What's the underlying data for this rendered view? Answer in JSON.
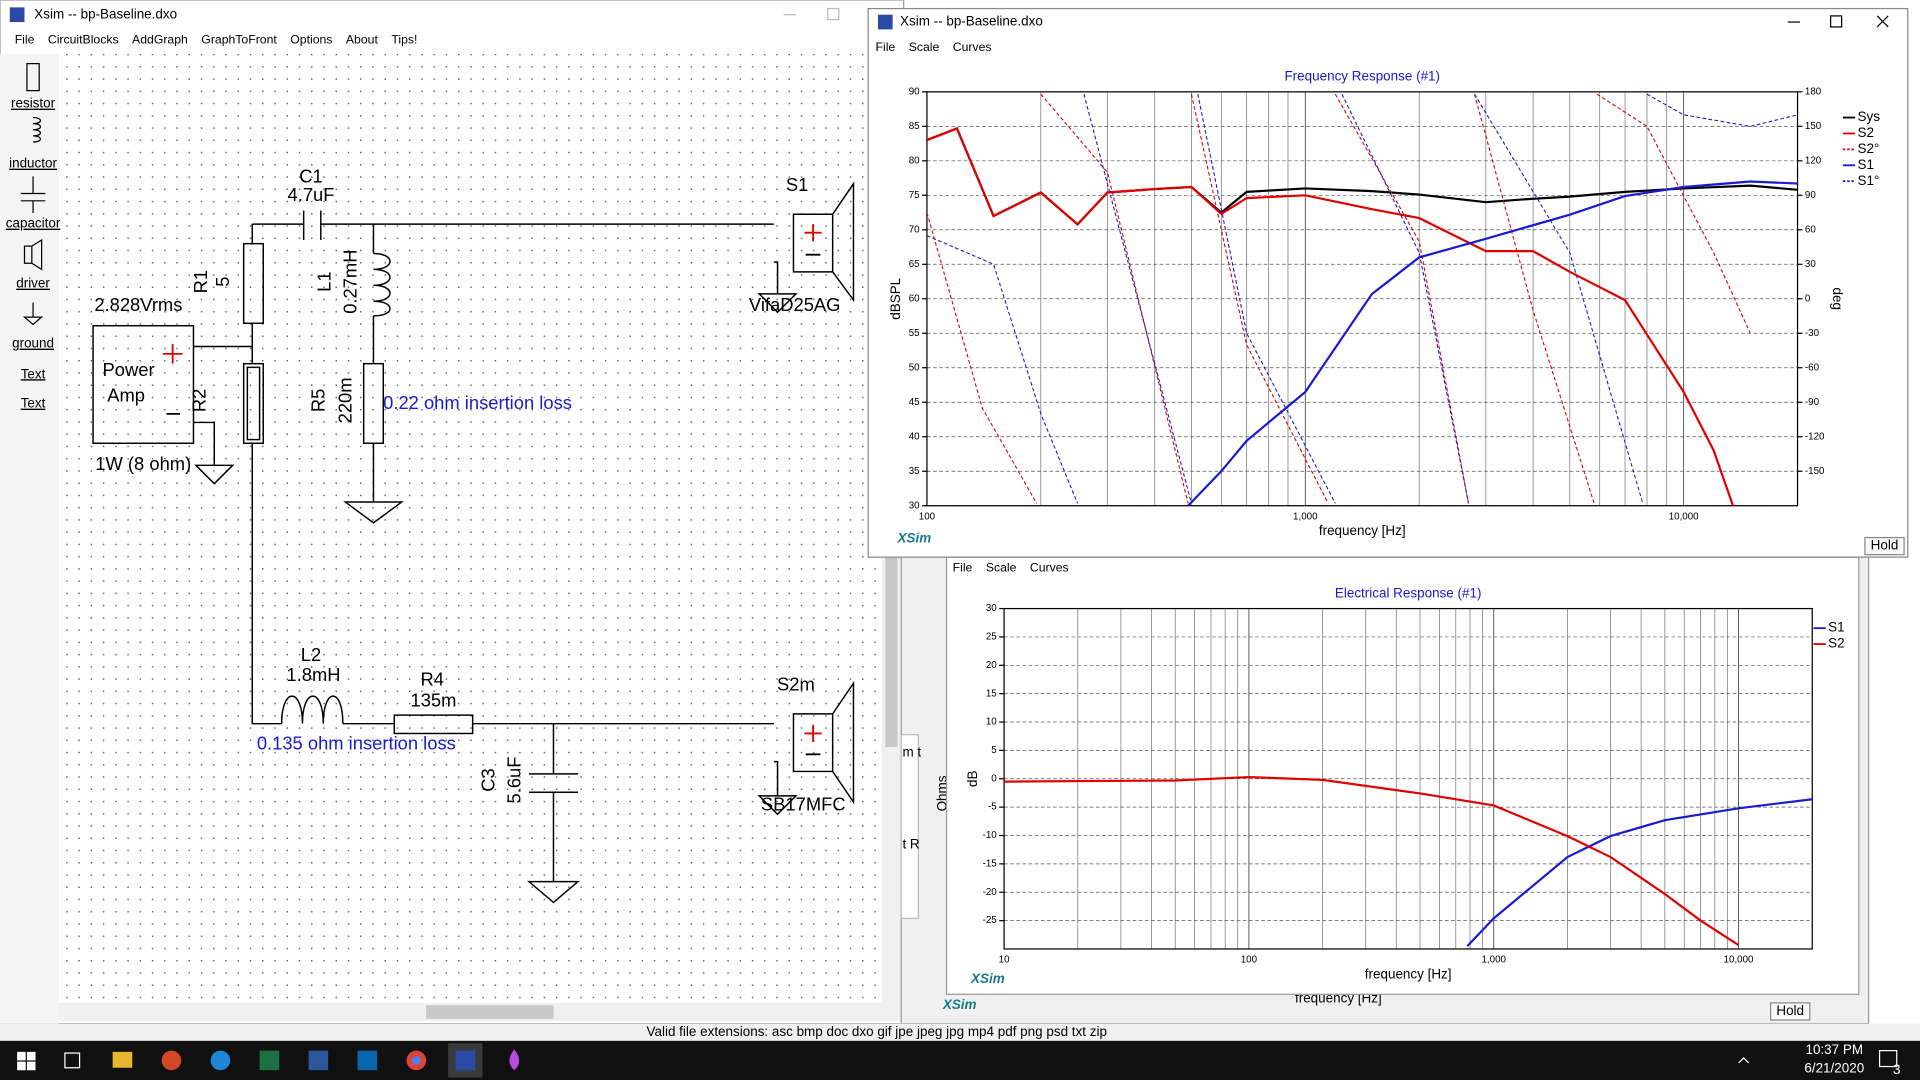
{
  "main_window": {
    "title": "Xsim -- bp-Baseline.dxo",
    "menu": [
      "File",
      "CircuitBlocks",
      "AddGraph",
      "GraphToFront",
      "Options",
      "About",
      "Tips!"
    ],
    "toolbox": [
      "resistor",
      "inductor",
      "capacitor",
      "driver",
      "ground",
      "Text",
      "Text"
    ]
  },
  "schematic": {
    "labels": [
      "C1",
      "4.7uF",
      "R1",
      "5",
      "L1",
      "0.27mH",
      "2.828Vrms",
      "Power",
      "Amp",
      "R2",
      "R5",
      "220m",
      "0.22 ohm insertion loss",
      "S1",
      "VifaD25AG",
      "1W (8 ohm)",
      "L2",
      "1.8mH",
      "R4",
      "135m",
      "0.135 ohm insertion loss",
      "S2m",
      "C3",
      "5.6uF",
      "SB17MFC"
    ]
  },
  "graph_windows": [
    {
      "title": "Xsim -- bp-Baseline.dxo",
      "menu": [
        "File",
        "Scale",
        "Curves"
      ],
      "brand": "XSim",
      "button": "Hold"
    },
    {
      "menu": [
        "File",
        "Scale",
        "Curves"
      ],
      "brand": "XSim"
    },
    {
      "brand": "XSim",
      "button": "Hold",
      "x_label": "frequency [Hz]",
      "y_label": "Ohms",
      "fragments": [
        "m t",
        "t R"
      ]
    }
  ],
  "chart_data": [
    {
      "type": "line",
      "title": "Frequency Response (#1)",
      "x_label": "frequency [Hz]",
      "y_label": "dBSPL",
      "y2_label": "deg",
      "log_x": true,
      "grid": true,
      "legend": "right",
      "xlim": [
        100,
        20000
      ],
      "xticks": [
        100,
        {
          "value": 1000,
          "label": "1,000"
        },
        {
          "value": 10000,
          "label": "10,000"
        }
      ],
      "xticks_minor": [
        200,
        300,
        400,
        500,
        600,
        700,
        800,
        900,
        2000,
        3000,
        4000,
        5000,
        6000,
        7000,
        8000,
        9000
      ],
      "ylim": [
        30,
        90
      ],
      "yticks": [
        30,
        35,
        40,
        45,
        50,
        55,
        60,
        65,
        70,
        75,
        80,
        85,
        90
      ],
      "y2lim": [
        -180,
        180
      ],
      "y2ticks": [
        -150,
        -120,
        -90,
        -60,
        -30,
        0,
        30,
        60,
        90,
        120,
        150,
        180
      ],
      "series": [
        {
          "name": "Sys",
          "color": "#000000",
          "x": [
            100,
            120,
            150,
            200,
            250,
            300,
            400,
            500,
            600,
            700,
            1000,
            1500,
            2000,
            3000,
            4000,
            5000,
            7000,
            10000,
            15000,
            20000
          ],
          "values": [
            83,
            84.7,
            72,
            75.4,
            70.8,
            75.4,
            75.9,
            76.2,
            72.5,
            75.5,
            76,
            75.6,
            75.1,
            74,
            74.5,
            74.8,
            75.5,
            76,
            76.4,
            75.8
          ]
        },
        {
          "name": "S2",
          "color": "#e00000",
          "x": [
            100,
            120,
            150,
            200,
            250,
            300,
            400,
            500,
            600,
            700,
            1000,
            1500,
            2000,
            3000,
            4000,
            5000,
            7000,
            10000,
            12000,
            13500
          ],
          "values": [
            83,
            84.7,
            72,
            75.4,
            70.8,
            75.4,
            75.9,
            76.2,
            72.3,
            74.6,
            75,
            73,
            71.7,
            66.9,
            66.9,
            63.9,
            59.8,
            46.5,
            38,
            30
          ]
        },
        {
          "name": "S2°",
          "color": "#e00000",
          "dash": true,
          "axis": "y2",
          "x": [
            100,
            140,
            195,
            200,
            200,
            300,
            490,
            500,
            500,
            700,
            1150,
            1200,
            1200,
            2000,
            2700,
            2800,
            2800,
            4000,
            5800,
            5900,
            5900,
            8000,
            12000,
            15000
          ],
          "values": [
            75,
            -95,
            -178,
            null,
            178,
            110,
            -178,
            null,
            178,
            -40,
            -178,
            null,
            178,
            50,
            -178,
            null,
            178,
            -10,
            -178,
            null,
            178,
            150,
            40,
            -30
          ]
        },
        {
          "name": "S1",
          "color": "#1a1ad0",
          "x": [
            490,
            600,
            700,
            1000,
            1500,
            2000,
            3000,
            5000,
            7000,
            10000,
            15000,
            20000
          ],
          "values": [
            30,
            35,
            39.4,
            46.5,
            60.7,
            66,
            68.7,
            72.2,
            74.9,
            76.2,
            77,
            76.7
          ]
        },
        {
          "name": "S1°",
          "color": "#1a1ad0",
          "dash": true,
          "axis": "y2",
          "x": [
            100,
            150,
            200,
            250,
            260,
            260,
            300,
            500,
            520,
            520,
            700,
            1200,
            1250,
            1250,
            2000,
            2700,
            2800,
            2800,
            5000,
            7800,
            8000,
            8000,
            10000,
            15000,
            20000
          ],
          "values": [
            55,
            30,
            -100,
            -178,
            null,
            178,
            100,
            -178,
            null,
            178,
            -30,
            -178,
            null,
            178,
            40,
            -178,
            null,
            178,
            40,
            -178,
            null,
            178,
            160,
            150,
            160
          ]
        }
      ]
    },
    {
      "type": "line",
      "title": "Electrical Response (#1)",
      "x_label": "frequency [Hz]",
      "y_label": "dB",
      "log_x": true,
      "grid": true,
      "legend": "right",
      "xlim": [
        10,
        20000
      ],
      "xticks": [
        10,
        100,
        {
          "value": 1000,
          "label": "1,000"
        },
        {
          "value": 10000,
          "label": "10,000"
        }
      ],
      "xticks_minor": [
        20,
        30,
        40,
        50,
        60,
        70,
        80,
        90,
        200,
        300,
        400,
        500,
        600,
        700,
        800,
        900,
        2000,
        3000,
        4000,
        5000,
        6000,
        7000,
        8000,
        9000
      ],
      "ylim": [
        -30,
        30
      ],
      "yticks": [
        -25,
        -20,
        -15,
        -10,
        -5,
        0,
        5,
        10,
        15,
        20,
        25,
        30
      ],
      "series": [
        {
          "name": "S1",
          "color": "#1a1ad0",
          "x": [
            780,
            1000,
            2000,
            3000,
            5000,
            10000,
            20000
          ],
          "values": [
            -29.5,
            -24.6,
            -13.8,
            -10.1,
            -7.3,
            -5.2,
            -3.6
          ]
        },
        {
          "name": "S2",
          "color": "#e00000",
          "x": [
            10,
            50,
            100,
            200,
            500,
            1000,
            2000,
            3000,
            5000,
            7000,
            10000
          ],
          "values": [
            -0.5,
            -0.3,
            0.3,
            -0.2,
            -2.6,
            -4.7,
            -10.1,
            -13.8,
            -20.3,
            -25,
            -29.3
          ]
        }
      ]
    }
  ],
  "status_bar": "Valid file extensions: asc bmp doc dxo gif jpe jpeg jpg mp4 pdf png psd txt zip",
  "taskbar": {
    "time": "10:37 PM",
    "date": "6/21/2020",
    "notifications": "3"
  }
}
